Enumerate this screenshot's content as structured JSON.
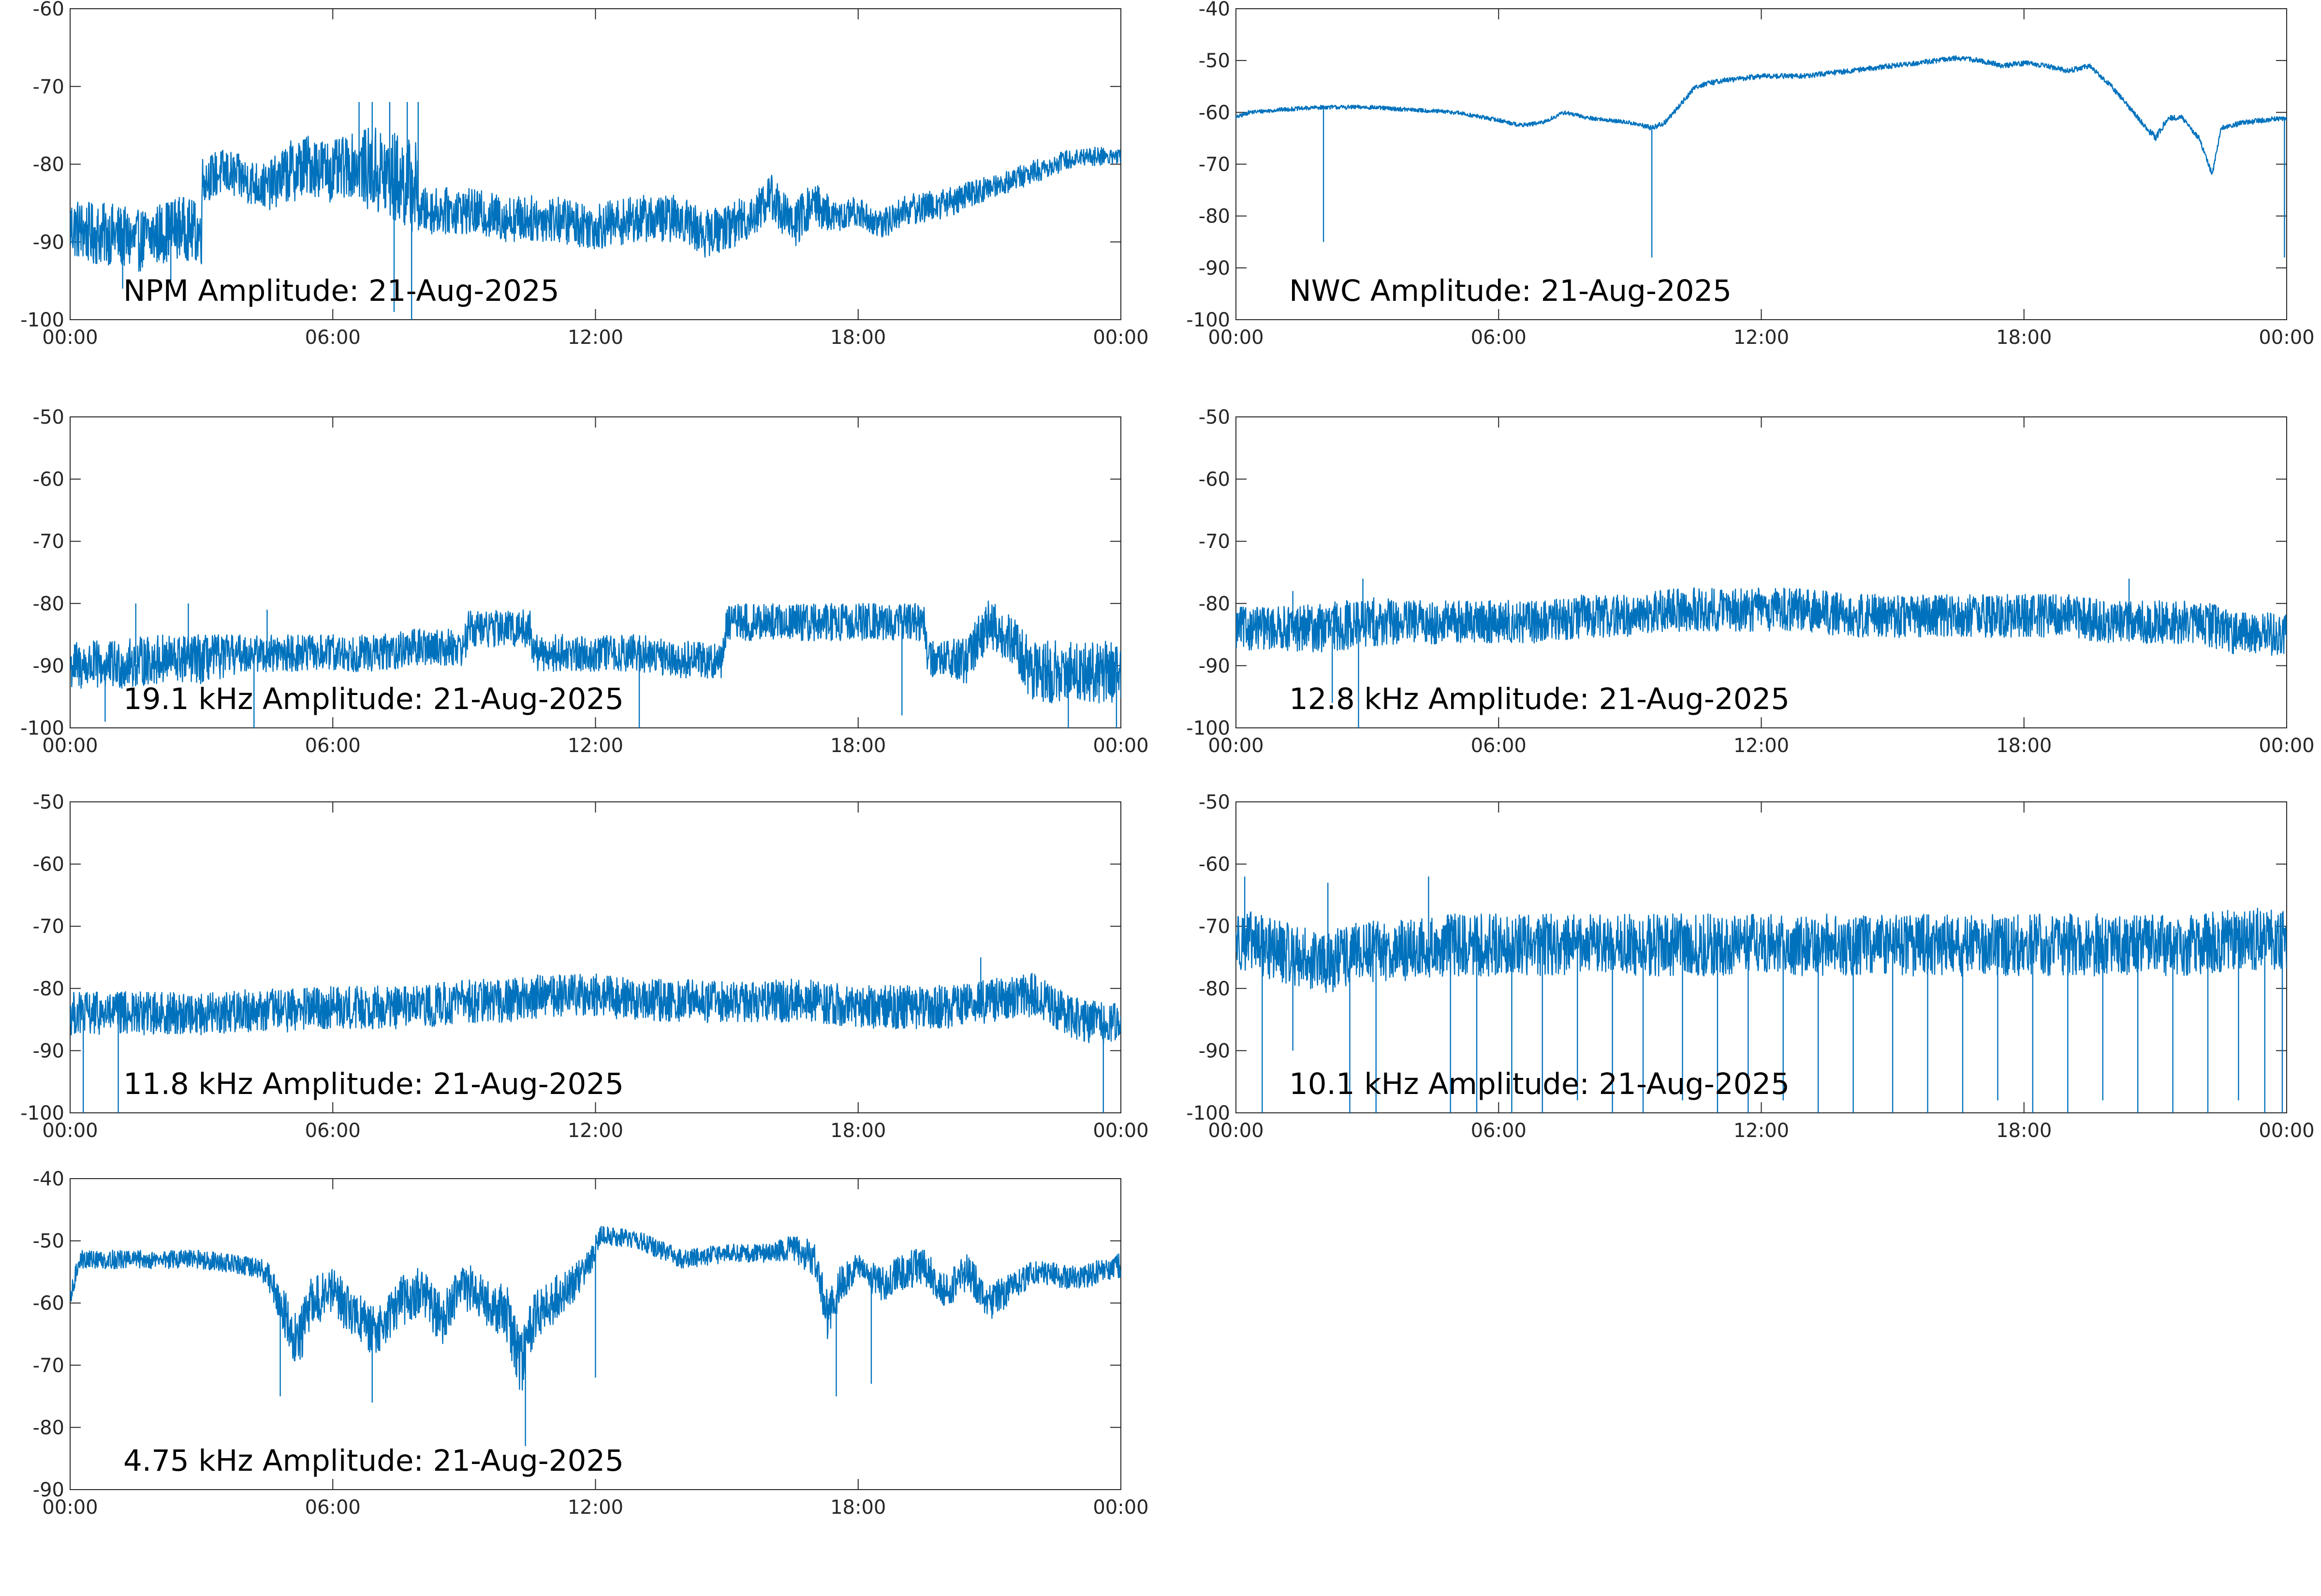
{
  "line_color": "#0072bd",
  "chart_data": [
    {
      "type": "line",
      "title": "NPM Amplitude: 21-Aug-2025",
      "ylim": [
        -100,
        -60
      ],
      "yticks": [
        -100,
        -90,
        -80,
        -70,
        -60
      ],
      "xlim_hours": [
        0,
        24
      ],
      "xticks": [
        "00:00",
        "06:00",
        "12:00",
        "18:00",
        "00:00"
      ],
      "x": [
        0,
        0.5,
        1,
        1.5,
        2,
        2.5,
        3,
        3.01,
        3.5,
        4,
        4.5,
        5,
        5.5,
        6,
        6.5,
        7,
        7.5,
        7.9,
        8.0,
        8.5,
        9,
        10,
        11,
        12,
        13,
        14,
        14.5,
        15,
        15.5,
        16,
        16.5,
        17,
        17.5,
        18,
        18.5,
        19,
        20,
        21,
        22,
        23,
        24
      ],
      "y": [
        -88,
        -89,
        -89,
        -90,
        -89,
        -88,
        -89,
        -82,
        -81,
        -82,
        -83,
        -81,
        -80,
        -81,
        -80,
        -81,
        -82,
        -83,
        -86,
        -86,
        -86,
        -87,
        -87,
        -88,
        -87,
        -87,
        -89,
        -88,
        -87,
        -84,
        -88,
        -85,
        -87,
        -86,
        -88,
        -86,
        -85,
        -83,
        -81,
        -79,
        -79
      ],
      "band": [
        4,
        4,
        4,
        4,
        4,
        4,
        4,
        3,
        3,
        3,
        3,
        4,
        4,
        4,
        4,
        6,
        6,
        6,
        3,
        3,
        3,
        3,
        3,
        3,
        3,
        3,
        3,
        3,
        3,
        3,
        3,
        3,
        2,
        2,
        2,
        2,
        2,
        1.5,
        1.5,
        1.2,
        1.2
      ],
      "spikes": [
        [
          6.6,
          -72
        ],
        [
          6.9,
          -72
        ],
        [
          7.3,
          -72
        ],
        [
          7.7,
          -72
        ],
        [
          7.95,
          -72
        ],
        [
          7.4,
          -99
        ],
        [
          7.8,
          -100
        ],
        [
          1.2,
          -96
        ],
        [
          2.3,
          -95
        ]
      ]
    },
    {
      "type": "line",
      "title": "NWC Amplitude: 21-Aug-2025",
      "ylim": [
        -100,
        -40
      ],
      "yticks": [
        -100,
        -90,
        -80,
        -70,
        -60,
        -50,
        -40
      ],
      "xlim_hours": [
        0,
        24
      ],
      "xticks": [
        "00:00",
        "06:00",
        "12:00",
        "18:00",
        "00:00"
      ],
      "x": [
        0,
        0.3,
        1,
        2,
        3,
        4,
        5,
        6,
        6.5,
        7,
        7.5,
        8,
        8.5,
        9,
        9.5,
        9.8,
        10,
        10.5,
        11,
        12,
        13,
        14,
        15,
        16,
        16.5,
        17,
        17.5,
        18,
        18.5,
        19,
        19.5,
        20,
        20.5,
        20.8,
        21,
        21.3,
        21.6,
        22,
        22.3,
        22.5,
        23,
        24
      ],
      "y": [
        -61,
        -60,
        -59.5,
        -59,
        -59,
        -59.5,
        -60,
        -61.5,
        -62.5,
        -62,
        -60,
        -61,
        -61.5,
        -62,
        -63,
        -62,
        -60,
        -55,
        -54,
        -53,
        -53,
        -52,
        -51,
        -50,
        -49.5,
        -50,
        -51,
        -50.5,
        -51,
        -52,
        -51,
        -55,
        -60,
        -63,
        -65,
        -61,
        -61,
        -65,
        -72,
        -63,
        -62,
        -61
      ],
      "band": [
        0.4,
        0.4,
        0.4,
        0.4,
        0.4,
        0.4,
        0.4,
        0.4,
        0.4,
        0.4,
        0.4,
        0.4,
        0.4,
        0.4,
        0.5,
        0.5,
        0.5,
        0.5,
        0.5,
        0.5,
        0.5,
        0.5,
        0.5,
        0.5,
        0.5,
        0.5,
        0.5,
        0.5,
        0.5,
        0.5,
        0.5,
        0.5,
        0.5,
        0.6,
        0.8,
        0.5,
        0.5,
        0.5,
        0.5,
        0.5,
        0.5,
        0.5
      ],
      "spikes": [
        [
          2.0,
          -85
        ],
        [
          9.5,
          -88
        ],
        [
          23.95,
          -88
        ]
      ]
    },
    {
      "type": "line",
      "title": "19.1 kHz Amplitude: 21-Aug-2025",
      "ylim": [
        -100,
        -50
      ],
      "yticks": [
        -100,
        -90,
        -80,
        -70,
        -60,
        -50
      ],
      "xlim_hours": [
        0,
        24
      ],
      "xticks": [
        "00:00",
        "06:00",
        "12:00",
        "18:00",
        "00:00"
      ],
      "x": [
        0,
        1,
        2,
        3,
        4,
        5,
        6,
        7,
        8,
        9,
        9.1,
        10,
        10.5,
        10.6,
        11,
        12,
        13,
        14,
        14.9,
        15,
        16,
        17,
        18,
        19,
        19.5,
        19.6,
        20,
        20.5,
        21,
        21.5,
        22,
        23,
        24
      ],
      "y": [
        -90,
        -90,
        -89,
        -89,
        -88,
        -88,
        -88,
        -88,
        -87,
        -87,
        -84,
        -84,
        -84,
        -88,
        -88,
        -88,
        -88,
        -89,
        -89,
        -83,
        -83,
        -83,
        -83,
        -83,
        -83,
        -89,
        -89,
        -89,
        -83,
        -86,
        -91,
        -91,
        -91
      ],
      "band": [
        4,
        4,
        4,
        4,
        3,
        3,
        3,
        3,
        3,
        3,
        3,
        3,
        3,
        3,
        3,
        3,
        3,
        3,
        3,
        3,
        3,
        3,
        3,
        3,
        3,
        3,
        3,
        4,
        4,
        4,
        5,
        5,
        5
      ],
      "spikes": [
        [
          1.5,
          -80
        ],
        [
          2.7,
          -80
        ],
        [
          4.5,
          -81
        ],
        [
          0.8,
          -99
        ],
        [
          4.2,
          -100
        ],
        [
          13,
          -100
        ],
        [
          19,
          -98
        ],
        [
          22.8,
          -100
        ],
        [
          23.9,
          -100
        ]
      ]
    },
    {
      "type": "line",
      "title": "12.8 kHz Amplitude: 21-Aug-2025",
      "ylim": [
        -100,
        -50
      ],
      "yticks": [
        -100,
        -90,
        -80,
        -70,
        -60,
        -50
      ],
      "xlim_hours": [
        0,
        24
      ],
      "xticks": [
        "00:00",
        "06:00",
        "12:00",
        "18:00",
        "00:00"
      ],
      "x": [
        0,
        1,
        2,
        3,
        4,
        5,
        6,
        7,
        8,
        9,
        10,
        11,
        12,
        13,
        14,
        15,
        16,
        17,
        18,
        19,
        20,
        21,
        22,
        23,
        24
      ],
      "y": [
        -84,
        -84,
        -84,
        -83,
        -83,
        -83,
        -83,
        -83,
        -82,
        -82,
        -81,
        -81,
        -81,
        -81,
        -82,
        -82,
        -82,
        -82,
        -82,
        -82,
        -83,
        -83,
        -83,
        -85,
        -85
      ],
      "band": [
        3.5,
        3.5,
        4,
        4,
        3.5,
        3.5,
        3.5,
        3.5,
        3.5,
        3.5,
        3.5,
        3.5,
        3.5,
        3.5,
        3.5,
        3.5,
        3.5,
        3.5,
        3.5,
        3.5,
        3.5,
        3.5,
        3.5,
        3.5,
        3.5
      ],
      "spikes": [
        [
          1.3,
          -78
        ],
        [
          2.9,
          -76
        ],
        [
          20.4,
          -76
        ],
        [
          2.2,
          -96
        ],
        [
          2.8,
          -100
        ]
      ]
    },
    {
      "type": "line",
      "title": "11.8 kHz Amplitude: 21-Aug-2025",
      "ylim": [
        -100,
        -50
      ],
      "yticks": [
        -100,
        -90,
        -80,
        -70,
        -60,
        -50
      ],
      "xlim_hours": [
        0,
        24
      ],
      "xticks": [
        "00:00",
        "06:00",
        "12:00",
        "18:00",
        "00:00"
      ],
      "x": [
        0,
        1,
        2,
        3,
        4,
        5,
        6,
        7,
        8,
        9,
        10,
        11,
        12,
        13,
        14,
        15,
        16,
        17,
        18,
        19,
        20,
        21,
        22,
        23,
        24
      ],
      "y": [
        -84,
        -84,
        -84,
        -84,
        -83.5,
        -83.5,
        -83,
        -83,
        -83,
        -82,
        -82,
        -81,
        -81,
        -82,
        -82,
        -82,
        -82,
        -82,
        -83,
        -83,
        -83,
        -82,
        -81,
        -85,
        -86
      ],
      "band": [
        3.5,
        3.5,
        3.5,
        3.5,
        3.5,
        3.5,
        3.5,
        3.5,
        3.5,
        3.5,
        3.5,
        3.5,
        3.5,
        3.5,
        3.5,
        3.5,
        3.5,
        3.5,
        3.5,
        3.5,
        3.5,
        3.5,
        3.5,
        3.5,
        3.5
      ],
      "spikes": [
        [
          0.3,
          -100
        ],
        [
          1.1,
          -100
        ],
        [
          20.8,
          -75
        ],
        [
          23.6,
          -100
        ]
      ]
    },
    {
      "type": "line",
      "title": "10.1 kHz Amplitude: 21-Aug-2025",
      "ylim": [
        -100,
        -50
      ],
      "yticks": [
        -100,
        -90,
        -80,
        -70,
        -60,
        -50
      ],
      "xlim_hours": [
        0,
        24
      ],
      "xticks": [
        "00:00",
        "06:00",
        "12:00",
        "18:00",
        "00:00"
      ],
      "x": [
        0,
        1,
        2,
        3,
        4,
        5,
        6,
        7,
        8,
        9,
        10,
        11,
        12,
        13,
        14,
        15,
        16,
        17,
        18,
        19,
        20,
        21,
        22,
        23,
        24
      ],
      "y": [
        -72,
        -74,
        -76,
        -74,
        -74,
        -73,
        -73,
        -73,
        -73,
        -73,
        -73,
        -73,
        -73,
        -73,
        -73,
        -73,
        -73,
        -73,
        -73,
        -73,
        -73,
        -73,
        -73,
        -72,
        -72
      ],
      "band": [
        5,
        5,
        5,
        5,
        5,
        5,
        5,
        5,
        5,
        5,
        5,
        5,
        5,
        5,
        5,
        5,
        5,
        5,
        5,
        5,
        5,
        5,
        5,
        5,
        5
      ],
      "spikes": [
        [
          0.2,
          -62
        ],
        [
          0.6,
          -100
        ],
        [
          1.3,
          -90
        ],
        [
          2.1,
          -63
        ],
        [
          2.6,
          -100
        ],
        [
          3.2,
          -100
        ],
        [
          4.4,
          -62
        ],
        [
          4.9,
          -100
        ],
        [
          5.5,
          -100
        ],
        [
          6.3,
          -100
        ],
        [
          7.0,
          -100
        ],
        [
          7.8,
          -98
        ],
        [
          8.6,
          -100
        ],
        [
          9.3,
          -100
        ],
        [
          10.2,
          -98
        ],
        [
          11.0,
          -100
        ],
        [
          11.7,
          -100
        ],
        [
          12.5,
          -98
        ],
        [
          13.3,
          -100
        ],
        [
          14.1,
          -100
        ],
        [
          15.0,
          -100
        ],
        [
          15.8,
          -100
        ],
        [
          16.6,
          -100
        ],
        [
          17.4,
          -98
        ],
        [
          18.2,
          -100
        ],
        [
          19.0,
          -100
        ],
        [
          19.8,
          -98
        ],
        [
          20.6,
          -100
        ],
        [
          21.4,
          -100
        ],
        [
          22.2,
          -100
        ],
        [
          22.9,
          -98
        ],
        [
          23.5,
          -100
        ],
        [
          23.9,
          -100
        ]
      ]
    },
    {
      "type": "line",
      "title": "4.75 kHz Amplitude: 21-Aug-2025",
      "ylim": [
        -90,
        -40
      ],
      "yticks": [
        -90,
        -80,
        -70,
        -60,
        -50,
        -40
      ],
      "xlim_hours": [
        0,
        24
      ],
      "xticks": [
        "00:00",
        "06:00",
        "12:00",
        "18:00",
        "00:00"
      ],
      "x": [
        0,
        0.2,
        1,
        2,
        3,
        4,
        4.5,
        4.9,
        5.2,
        5.5,
        6,
        6.5,
        7,
        7.5,
        8,
        8.5,
        9,
        9.5,
        10,
        10.3,
        10.6,
        11,
        11.5,
        11.9,
        12.1,
        13,
        14,
        15,
        16,
        16.5,
        17,
        17.3,
        17.6,
        18,
        18.5,
        19,
        19.5,
        20,
        20.5,
        21,
        22,
        23,
        24
      ],
      "y": [
        -60,
        -53,
        -53,
        -53,
        -53,
        -54,
        -55,
        -62,
        -66,
        -60,
        -58,
        -62,
        -65,
        -60,
        -58,
        -63,
        -57,
        -60,
        -62,
        -70,
        -62,
        -60,
        -57,
        -53,
        -49,
        -50,
        -53,
        -52,
        -52,
        -51,
        -53,
        -62,
        -57,
        -54,
        -57,
        -55,
        -54,
        -58,
        -55,
        -60,
        -55,
        -56,
        -54
      ],
      "band": [
        2,
        1.5,
        1.5,
        1.5,
        1.5,
        1.5,
        2,
        4,
        5,
        4,
        4,
        4,
        4,
        4,
        4,
        4,
        4,
        4,
        5,
        5,
        4,
        4,
        3,
        2,
        1.5,
        1.5,
        1.5,
        1.5,
        1.5,
        2,
        3,
        4,
        3,
        2,
        3,
        3,
        3,
        3,
        3,
        3,
        2,
        2,
        2
      ],
      "spikes": [
        [
          4.8,
          -75
        ],
        [
          6.9,
          -76
        ],
        [
          10.4,
          -83
        ],
        [
          17.5,
          -75
        ],
        [
          18.3,
          -73
        ],
        [
          12.0,
          -72
        ]
      ]
    }
  ]
}
